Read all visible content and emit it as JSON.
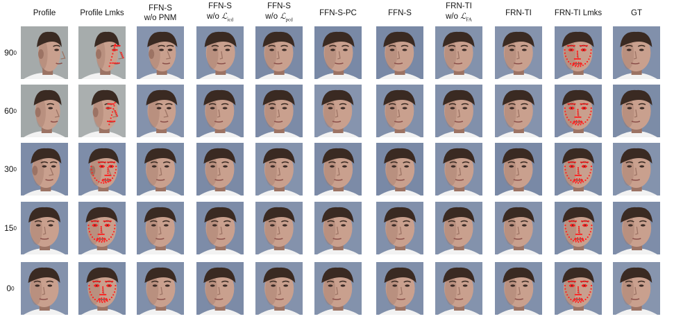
{
  "columns": [
    {
      "id": "profile",
      "line1": "Profile",
      "line2": "",
      "sub": "",
      "landmarks": false,
      "style": "profile"
    },
    {
      "id": "profile-lmks",
      "line1": "Profile Lmks",
      "line2": "",
      "sub": "",
      "landmarks": true,
      "style": "profile"
    },
    {
      "id": "ffn-s-wo-pnm",
      "line1": "FFN-S",
      "line2": "w/o PNM",
      "sub": "",
      "landmarks": false,
      "style": "profile"
    },
    {
      "id": "ffn-s-wo-licd",
      "line1": "FFN-S",
      "line2": "w/o ",
      "sub": "icd",
      "landmarks": false,
      "style": "frontal"
    },
    {
      "id": "ffn-s-wo-lpcd",
      "line1": "FFN-S",
      "line2": "w/o ",
      "sub": "pcd",
      "landmarks": false,
      "style": "frontal"
    },
    {
      "id": "ffn-s-pc",
      "line1": "FFN-S-PC",
      "line2": "",
      "sub": "",
      "landmarks": false,
      "style": "frontal"
    },
    {
      "id": "ffn-s",
      "line1": "FFN-S",
      "line2": "",
      "sub": "",
      "landmarks": false,
      "style": "frontal"
    },
    {
      "id": "frn-ti-wo-lfa",
      "line1": "FRN-TI",
      "line2": "w/o ",
      "sub": "FA",
      "landmarks": false,
      "style": "frontal"
    },
    {
      "id": "frn-ti",
      "line1": "FRN-TI",
      "line2": "",
      "sub": "",
      "landmarks": false,
      "style": "frontal"
    },
    {
      "id": "frn-ti-lmks",
      "line1": "FRN-TI Lmks",
      "line2": "",
      "sub": "",
      "landmarks": true,
      "style": "frontal"
    },
    {
      "id": "gt",
      "line1": "GT",
      "line2": "",
      "sub": "",
      "landmarks": false,
      "style": "frontal"
    }
  ],
  "rows": [
    {
      "angle": "90",
      "exp": "0",
      "yaw": 90
    },
    {
      "angle": "60",
      "exp": "0",
      "yaw": 60
    },
    {
      "angle": "30",
      "exp": "0",
      "yaw": 30
    },
    {
      "angle": "15",
      "exp": "0",
      "yaw": 15
    },
    {
      "angle": "0",
      "exp": "0",
      "yaw": 0
    }
  ],
  "colors": {
    "skin": "#c9a08e",
    "skin_shadow": "#9c7364",
    "hair": "#3a2a22",
    "bg_blue": "#6e7f9e",
    "bg_gray": "#9aa0a0",
    "landmark": "#ff2020",
    "shirt": "#f2f2f2"
  }
}
